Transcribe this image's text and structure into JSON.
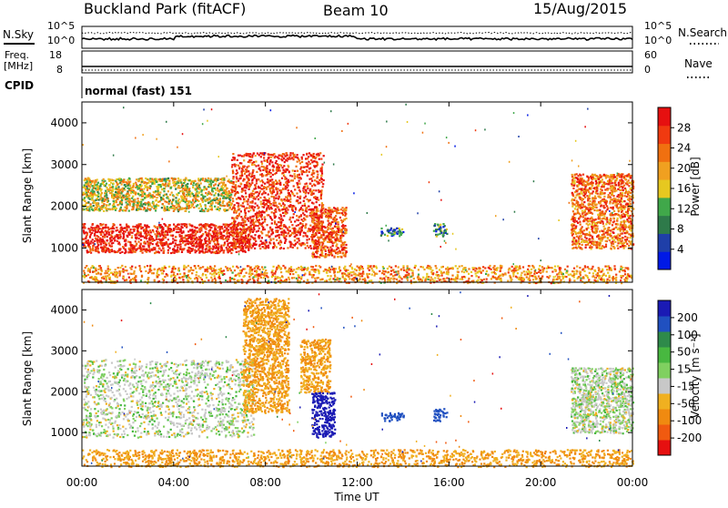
{
  "header": {
    "station": "Buckland Park (fitACF)",
    "beam": "Beam 10",
    "date": "15/Aug/2015"
  },
  "top_panels": {
    "nsky_label": "N.Sky",
    "nsearch_label": "N.Search",
    "noise_ticks_left": [
      "10^5",
      "10^0"
    ],
    "noise_ticks_right": [
      "10^5",
      "10^0"
    ],
    "freq_label": "Freq.",
    "freq_unit": "[MHz]",
    "freq_ticks": [
      "18",
      "8"
    ],
    "nave_label": "Nave",
    "nave_ticks": [
      "60",
      "0"
    ],
    "cpid_label": "CPID",
    "cpid_text": "normal (fast) 151"
  },
  "x_axis": {
    "label": "Time UT",
    "ticks": [
      "00:00",
      "04:00",
      "08:00",
      "12:00",
      "16:00",
      "20:00",
      "00:00"
    ]
  },
  "panels": [
    {
      "ylabel": "Slant Range [km]",
      "yticks": [
        "1000",
        "2000",
        "3000",
        "4000"
      ],
      "colorbar_label": "Power [dB]",
      "colorbar_ticks": [
        "4",
        "8",
        "12",
        "16",
        "20",
        "24",
        "28"
      ],
      "colors": [
        "#0019e6",
        "#1f3fa8",
        "#2e7a4a",
        "#40a84a",
        "#e6c820",
        "#f0a020",
        "#f07010",
        "#f03a10",
        "#e61010"
      ]
    },
    {
      "ylabel": "Slant Range [km]",
      "yticks": [
        "1000",
        "2000",
        "3000",
        "4000"
      ],
      "colorbar_label": "Velocity [m s⁻¹]",
      "colorbar_ticks": [
        "200",
        "100",
        "50",
        "15",
        "-15",
        "-50",
        "-100",
        "-200"
      ],
      "colors": [
        "#1a1ab4",
        "#2050c0",
        "#2e8a4a",
        "#48b840",
        "#80d060",
        "#c8c8c8",
        "#f0b020",
        "#f08a10",
        "#f05a10",
        "#e61010"
      ]
    }
  ],
  "chart_data": [
    {
      "type": "heatmap",
      "title": "Buckland Park (fitACF) Beam 10 15/Aug/2015",
      "quantity": "Power [dB]",
      "xlabel": "Time UT",
      "ylabel": "Slant Range [km]",
      "xlim": [
        "00:00",
        "24:00"
      ],
      "ylim": [
        180,
        4500
      ],
      "zlim": [
        0,
        30
      ],
      "regions": [
        {
          "t": [
            0.0,
            7.3
          ],
          "r": [
            900,
            1600
          ],
          "value": 28
        },
        {
          "t": [
            0.0,
            6.5
          ],
          "r": [
            1900,
            2700
          ],
          "value": 16
        },
        {
          "t": [
            6.5,
            10.5
          ],
          "r": [
            1000,
            3300
          ],
          "value": 26
        },
        {
          "t": [
            10.0,
            11.5
          ],
          "r": [
            800,
            2000
          ],
          "value": 24
        },
        {
          "t": [
            13.0,
            14.0
          ],
          "r": [
            1300,
            1500
          ],
          "value": 8
        },
        {
          "t": [
            15.3,
            15.9
          ],
          "r": [
            1300,
            1600
          ],
          "value": 8
        },
        {
          "t": [
            21.3,
            24.0
          ],
          "r": [
            1000,
            2800
          ],
          "value": 22
        },
        {
          "t": [
            0.0,
            24.0
          ],
          "r": [
            180,
            600
          ],
          "value": 20
        }
      ]
    },
    {
      "type": "heatmap",
      "title": "Buckland Park (fitACF) Beam 10 15/Aug/2015",
      "quantity": "Velocity [m s-1]",
      "xlabel": "Time UT",
      "ylabel": "Slant Range [km]",
      "xlim": [
        "00:00",
        "24:00"
      ],
      "ylim": [
        180,
        4500
      ],
      "zlim": [
        -250,
        250
      ],
      "regions": [
        {
          "t": [
            0.0,
            7.5
          ],
          "r": [
            900,
            2800
          ],
          "value": 0
        },
        {
          "t": [
            7.0,
            9.0
          ],
          "r": [
            1500,
            4300
          ],
          "value": -50
        },
        {
          "t": [
            9.5,
            10.8
          ],
          "r": [
            2000,
            3300
          ],
          "value": -50
        },
        {
          "t": [
            10.0,
            11.0
          ],
          "r": [
            900,
            2000
          ],
          "value": 200
        },
        {
          "t": [
            13.0,
            14.0
          ],
          "r": [
            1300,
            1500
          ],
          "value": 100
        },
        {
          "t": [
            15.3,
            15.9
          ],
          "r": [
            1300,
            1600
          ],
          "value": 100
        },
        {
          "t": [
            21.3,
            24.0
          ],
          "r": [
            1000,
            2600
          ],
          "value": 0
        },
        {
          "t": [
            0.0,
            24.0
          ],
          "r": [
            180,
            600
          ],
          "value": -50
        }
      ]
    }
  ]
}
